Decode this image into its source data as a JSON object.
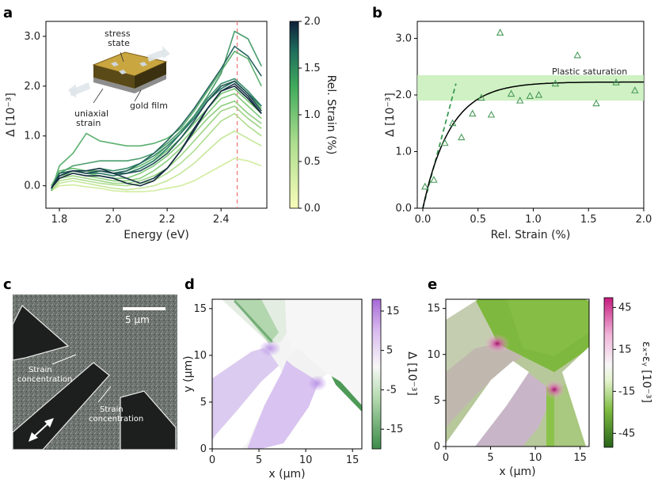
{
  "panels": [
    "a",
    "b",
    "c",
    "d",
    "e"
  ],
  "colors": {
    "green_light": "#d9f0a3",
    "green_mid": "#41ab5d",
    "navy": "#14233c",
    "magenta": "#c51b7d",
    "pink": "#f1b6da",
    "lime": "#4d9221",
    "purple": "#b07cdc",
    "dash_red": "#f08080",
    "band": "#c7efb8",
    "marker": "#4a9a5a"
  },
  "chart_data": [
    {
      "panel": "a",
      "type": "line",
      "xlabel": "Energy (eV)",
      "ylabel": "Δ [10⁻³]",
      "xlim": [
        1.75,
        2.57
      ],
      "ylim": [
        -0.45,
        3.3
      ],
      "xticks": [
        "1.8",
        "2.0",
        "2.2",
        "2.4"
      ],
      "xtick_values": [
        1.8,
        2.0,
        2.2,
        2.4
      ],
      "yticks": [
        "0.0",
        "1.0",
        "2.0",
        "3.0"
      ],
      "ytick_values": [
        0,
        1,
        2,
        3
      ],
      "vline_x": 2.46,
      "colorbar": {
        "label": "Rel. Strain (%)",
        "range": [
          0,
          2
        ],
        "ticks": [
          "0.0",
          "0.5",
          "1.0",
          "1.5",
          "2.0"
        ],
        "tick_values": [
          0,
          0.5,
          1,
          1.5,
          2
        ]
      },
      "inset_labels": [
        "stress",
        "state",
        "gold film",
        "uniaxial",
        "strain"
      ],
      "series": [
        {
          "strain": 0.05,
          "x": [
            1.77,
            1.8,
            1.85,
            1.9,
            1.95,
            2.0,
            2.05,
            2.1,
            2.15,
            2.2,
            2.25,
            2.3,
            2.35,
            2.4,
            2.45,
            2.5,
            2.55
          ],
          "y": [
            -0.1,
            0.0,
            0.02,
            -0.02,
            -0.05,
            -0.1,
            -0.12,
            -0.12,
            -0.1,
            -0.05,
            0.0,
            0.1,
            0.25,
            0.4,
            0.55,
            0.5,
            0.4
          ]
        },
        {
          "strain": 0.15,
          "x": [
            1.77,
            1.8,
            1.85,
            1.9,
            1.95,
            2.0,
            2.05,
            2.1,
            2.15,
            2.2,
            2.25,
            2.3,
            2.35,
            2.4,
            2.45,
            2.5,
            2.55
          ],
          "y": [
            -0.1,
            0.05,
            0.1,
            0.05,
            0.0,
            -0.05,
            -0.08,
            -0.05,
            0.0,
            0.1,
            0.25,
            0.45,
            0.7,
            0.95,
            1.1,
            0.95,
            0.8
          ]
        },
        {
          "strain": 0.3,
          "x": [
            1.77,
            1.8,
            1.85,
            1.9,
            1.95,
            2.0,
            2.05,
            2.1,
            2.15,
            2.2,
            2.25,
            2.3,
            2.35,
            2.4,
            2.45,
            2.5,
            2.55
          ],
          "y": [
            -0.1,
            0.1,
            0.15,
            0.1,
            0.05,
            0.02,
            0.0,
            0.05,
            0.1,
            0.25,
            0.45,
            0.7,
            1.0,
            1.3,
            1.45,
            1.2,
            1.0
          ]
        },
        {
          "strain": 0.45,
          "x": [
            1.77,
            1.8,
            1.85,
            1.9,
            1.95,
            2.0,
            2.05,
            2.1,
            2.15,
            2.2,
            2.25,
            2.3,
            2.35,
            2.4,
            2.45,
            2.5,
            2.55
          ],
          "y": [
            -0.05,
            0.15,
            0.2,
            0.15,
            0.1,
            0.05,
            0.05,
            0.1,
            0.2,
            0.35,
            0.6,
            0.9,
            1.2,
            1.5,
            1.6,
            1.35,
            1.15
          ]
        },
        {
          "strain": 0.55,
          "x": [
            1.77,
            1.8,
            1.85,
            1.9,
            1.95,
            2.0,
            2.05,
            2.1,
            2.15,
            2.2,
            2.25,
            2.3,
            2.35,
            2.4,
            2.45,
            2.5,
            2.55
          ],
          "y": [
            -0.05,
            0.2,
            0.25,
            0.2,
            0.15,
            0.1,
            0.1,
            0.15,
            0.3,
            0.5,
            0.75,
            1.05,
            1.35,
            1.6,
            1.7,
            1.45,
            1.25
          ]
        },
        {
          "strain": 0.65,
          "x": [
            1.77,
            1.8,
            1.85,
            1.9,
            1.95,
            2.0,
            2.05,
            2.1,
            2.15,
            2.2,
            2.25,
            2.3,
            2.35,
            2.4,
            2.45,
            2.5,
            2.55
          ],
          "y": [
            -0.05,
            0.2,
            0.3,
            0.25,
            0.2,
            0.15,
            0.15,
            0.25,
            0.4,
            0.6,
            0.85,
            1.15,
            1.45,
            1.75,
            1.85,
            1.6,
            1.35
          ]
        },
        {
          "strain": 0.75,
          "x": [
            1.77,
            1.8,
            1.85,
            1.9,
            1.95,
            2.0,
            2.05,
            2.1,
            2.15,
            2.2,
            2.25,
            2.3,
            2.35,
            2.4,
            2.45,
            2.5,
            2.55
          ],
          "y": [
            0.0,
            0.25,
            0.3,
            0.3,
            0.25,
            0.2,
            0.25,
            0.35,
            0.5,
            0.7,
            0.95,
            1.25,
            1.55,
            1.85,
            1.95,
            1.7,
            1.45
          ]
        },
        {
          "strain": 0.85,
          "x": [
            1.77,
            1.8,
            1.85,
            1.9,
            1.95,
            2.0,
            2.05,
            2.1,
            2.15,
            2.2,
            2.25,
            2.3,
            2.35,
            2.4,
            2.45,
            2.5,
            2.55
          ],
          "y": [
            0.0,
            0.3,
            0.35,
            0.3,
            0.3,
            0.25,
            0.3,
            0.4,
            0.55,
            0.8,
            1.05,
            1.35,
            1.7,
            2.0,
            2.1,
            1.85,
            1.55
          ]
        },
        {
          "strain": 0.95,
          "x": [
            1.77,
            1.8,
            1.85,
            1.9,
            1.95,
            2.0,
            2.05,
            2.1,
            2.15,
            2.2,
            2.25,
            2.3,
            2.35,
            2.4,
            2.45,
            2.5,
            2.55
          ],
          "y": [
            -0.1,
            0.4,
            0.65,
            1.05,
            0.9,
            0.85,
            0.8,
            0.8,
            0.85,
            0.95,
            1.15,
            1.5,
            1.9,
            2.3,
            2.7,
            2.55,
            2.0
          ]
        },
        {
          "strain": 1.1,
          "x": [
            1.77,
            1.8,
            1.85,
            1.9,
            1.95,
            2.0,
            2.05,
            2.1,
            2.15,
            2.2,
            2.25,
            2.3,
            2.35,
            2.4,
            2.45,
            2.5,
            2.55
          ],
          "y": [
            -0.05,
            0.25,
            0.4,
            0.45,
            0.5,
            0.5,
            0.5,
            0.55,
            0.65,
            0.85,
            1.1,
            1.4,
            1.8,
            2.25,
            3.1,
            2.95,
            2.4
          ]
        },
        {
          "strain": 1.25,
          "x": [
            1.77,
            1.8,
            1.85,
            1.9,
            1.95,
            2.0,
            2.05,
            2.1,
            2.15,
            2.2,
            2.25,
            2.3,
            2.35,
            2.4,
            2.45,
            2.5,
            2.55
          ],
          "y": [
            -0.05,
            0.25,
            0.3,
            0.3,
            0.35,
            0.3,
            0.35,
            0.45,
            0.6,
            0.8,
            1.05,
            1.4,
            1.75,
            2.05,
            2.15,
            1.9,
            1.6
          ]
        },
        {
          "strain": 1.4,
          "x": [
            1.77,
            1.8,
            1.85,
            1.9,
            1.95,
            2.0,
            2.05,
            2.1,
            2.15,
            2.2,
            2.25,
            2.3,
            2.35,
            2.4,
            2.45,
            2.5,
            2.55
          ],
          "y": [
            -0.05,
            0.2,
            0.3,
            0.25,
            0.25,
            0.2,
            0.25,
            0.35,
            0.5,
            0.75,
            1.05,
            1.35,
            1.7,
            1.95,
            2.1,
            1.85,
            1.6
          ]
        },
        {
          "strain": 1.55,
          "x": [
            1.77,
            1.8,
            1.85,
            1.9,
            1.95,
            2.0,
            2.05,
            2.1,
            2.15,
            2.2,
            2.25,
            2.3,
            2.35,
            2.4,
            2.45,
            2.5,
            2.55
          ],
          "y": [
            -0.05,
            0.25,
            0.3,
            0.25,
            0.3,
            0.25,
            0.3,
            0.45,
            0.65,
            0.9,
            1.2,
            1.55,
            1.95,
            2.35,
            2.8,
            2.6,
            2.2
          ]
        },
        {
          "strain": 1.7,
          "x": [
            1.77,
            1.8,
            1.85,
            1.9,
            1.95,
            2.0,
            2.05,
            2.1,
            2.15,
            2.2,
            2.25,
            2.3,
            2.35,
            2.4,
            2.45,
            2.5,
            2.55
          ],
          "y": [
            -0.05,
            0.2,
            0.3,
            0.25,
            0.3,
            0.25,
            0.25,
            0.3,
            0.45,
            0.65,
            0.95,
            1.3,
            1.7,
            2.0,
            2.1,
            1.85,
            1.5
          ]
        },
        {
          "strain": 1.85,
          "x": [
            1.77,
            1.8,
            1.85,
            1.9,
            1.95,
            2.0,
            2.05,
            2.1,
            2.15,
            2.2,
            2.25,
            2.3,
            2.35,
            2.4,
            2.45,
            2.5,
            2.55
          ],
          "y": [
            -0.05,
            0.2,
            0.3,
            0.3,
            0.35,
            0.25,
            0.15,
            0.05,
            0.15,
            0.35,
            0.7,
            1.1,
            1.55,
            1.9,
            2.05,
            1.8,
            1.45
          ]
        },
        {
          "strain": 1.95,
          "x": [
            1.77,
            1.8,
            1.85,
            1.9,
            1.95,
            2.0,
            2.05,
            2.1,
            2.15,
            2.2,
            2.25,
            2.3,
            2.35,
            2.4,
            2.45,
            2.5,
            2.55
          ],
          "y": [
            -0.05,
            0.15,
            0.25,
            0.2,
            0.2,
            0.15,
            0.05,
            0.0,
            0.1,
            0.35,
            0.7,
            1.15,
            1.55,
            1.9,
            2.0,
            1.75,
            1.45
          ]
        }
      ]
    },
    {
      "panel": "b",
      "type": "scatter",
      "xlabel": "Rel. Strain (%)",
      "ylabel": "Δ [10⁻³]",
      "xlim": [
        -0.05,
        2.0
      ],
      "ylim": [
        0,
        3.3
      ],
      "xticks": [
        "0.0",
        "0.5",
        "1.0",
        "1.5",
        "2.0"
      ],
      "xtick_values": [
        0,
        0.5,
        1,
        1.5,
        2
      ],
      "yticks": [
        "0.0",
        "1.0",
        "2.0",
        "3.0"
      ],
      "ytick_values": [
        0,
        1,
        2,
        3
      ],
      "annotation": "Plastic saturation",
      "band": [
        1.9,
        2.35
      ],
      "points": {
        "x": [
          0.02,
          0.1,
          0.2,
          0.27,
          0.35,
          0.45,
          0.53,
          0.62,
          0.7,
          0.8,
          0.88,
          0.97,
          1.05,
          1.2,
          1.4,
          1.57,
          1.75,
          1.92
        ],
        "y": [
          0.38,
          0.5,
          1.15,
          1.5,
          1.25,
          1.67,
          1.95,
          1.65,
          3.1,
          2.02,
          1.9,
          1.98,
          2.0,
          2.2,
          2.7,
          1.85,
          2.22,
          2.08
        ]
      },
      "fit": {
        "type": "exponential",
        "amplitude": 2.23,
        "rate": 4.0
      },
      "linear": {
        "x": [
          0.0,
          0.3
        ],
        "y": [
          0.0,
          2.2
        ]
      }
    },
    {
      "panel": "d",
      "type": "heatmap",
      "xlabel": "x (μm)",
      "ylabel": "y (μm)",
      "xlim": [
        0,
        16
      ],
      "ylim": [
        0,
        16
      ],
      "xticks": [
        "0",
        "5",
        "10",
        "15"
      ],
      "xtick_values": [
        0,
        5,
        10,
        15
      ],
      "yticks": [
        "0",
        "5",
        "10",
        "15"
      ],
      "ytick_values": [
        0,
        5,
        10,
        15
      ],
      "colorbar": {
        "label": "Δ [10⁻³]",
        "range": [
          -20,
          18
        ],
        "ticks": [
          "15",
          "5",
          "-5",
          "-15"
        ],
        "tick_values": [
          15,
          5,
          -5,
          -15
        ]
      }
    },
    {
      "panel": "e",
      "type": "heatmap",
      "xlabel": "x (μm)",
      "ylabel": "",
      "xlim": [
        0,
        16
      ],
      "ylim": [
        0,
        16
      ],
      "xticks": [
        "0",
        "5",
        "10",
        "15"
      ],
      "xtick_values": [
        0,
        5,
        10,
        15
      ],
      "yticks": [
        "0",
        "5",
        "10",
        "15"
      ],
      "ytick_values": [
        0,
        5,
        10,
        15
      ],
      "colorbar": {
        "label": "εₓ-εᵧ [10⁻³]",
        "range": [
          -55,
          52
        ],
        "ticks": [
          "45",
          "15",
          "-15",
          "-45"
        ],
        "tick_values": [
          45,
          15,
          -15,
          -45
        ]
      }
    }
  ],
  "sem": {
    "scalebar": "5 μm",
    "labels": [
      "Strain",
      "concentration",
      "Strain",
      "concentration"
    ]
  }
}
